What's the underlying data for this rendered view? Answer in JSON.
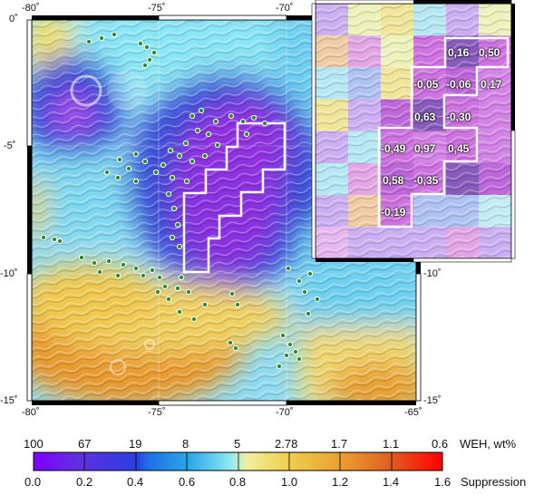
{
  "map": {
    "top_axis_ticks": [
      "-80˚",
      "-75˚",
      "-70˚"
    ],
    "bottom_axis_ticks": [
      "-80˚",
      "-75˚",
      "-70˚",
      "-65˚"
    ],
    "left_axis_ticks": [
      "0˚",
      "-5˚",
      "-10˚",
      "-15˚"
    ],
    "right_axis_ticks": [
      "-10˚",
      "-15˚"
    ]
  },
  "inset": {
    "values": [
      "0,16",
      "0,50",
      "-0,05",
      "-0,06",
      "0,17",
      "0,63",
      "-0,30",
      "-0,49",
      "0,97",
      "0,45",
      "0,58",
      "-0,35",
      "-0,19"
    ]
  },
  "colorbar": {
    "weh_ticks": [
      "100",
      "67",
      "19",
      "8",
      "5",
      "2.78",
      "1.7",
      "1.1",
      "0.6"
    ],
    "weh_label": "WEH, wt%",
    "suppression_ticks": [
      "0.0",
      "0.2",
      "0.4",
      "0.6",
      "0.8",
      "1.0",
      "1.2",
      "1.4",
      "1.6"
    ],
    "suppression_label": "Suppression",
    "colors": [
      "#7f00ff",
      "#5a2fd8",
      "#2d5be0",
      "#2ca8e8",
      "#7fe8f0",
      "#f0f0a0",
      "#f0c040",
      "#e08020",
      "#e03020",
      "#ff0000"
    ]
  }
}
